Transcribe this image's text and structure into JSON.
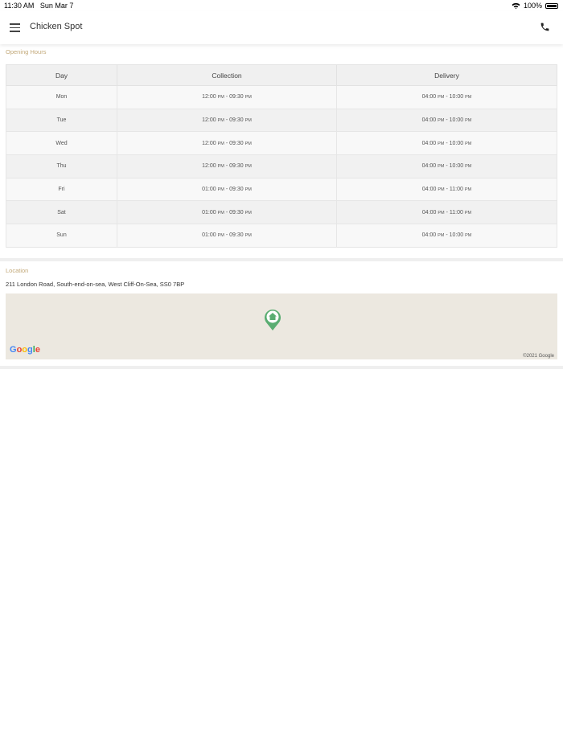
{
  "status_bar": {
    "time": "11:30 AM",
    "date": "Sun Mar 7",
    "battery": "100%"
  },
  "header": {
    "title": "Chicken Spot"
  },
  "opening_hours": {
    "label": "Opening Hours",
    "columns": [
      "Day",
      "Collection",
      "Delivery"
    ],
    "rows": [
      {
        "day": "Mon",
        "collection": {
          "from": "12:00",
          "from_p": "PM",
          "to": "09:30",
          "to_p": "PM"
        },
        "delivery": {
          "from": "04:00",
          "from_p": "PM",
          "to": "10:00",
          "to_p": "PM"
        }
      },
      {
        "day": "Tue",
        "collection": {
          "from": "12:00",
          "from_p": "PM",
          "to": "09:30",
          "to_p": "PM"
        },
        "delivery": {
          "from": "04:00",
          "from_p": "PM",
          "to": "10:00",
          "to_p": "PM"
        }
      },
      {
        "day": "Wed",
        "collection": {
          "from": "12:00",
          "from_p": "PM",
          "to": "09:30",
          "to_p": "PM"
        },
        "delivery": {
          "from": "04:00",
          "from_p": "PM",
          "to": "10:00",
          "to_p": "PM"
        }
      },
      {
        "day": "Thu",
        "collection": {
          "from": "12:00",
          "from_p": "PM",
          "to": "09:30",
          "to_p": "PM"
        },
        "delivery": {
          "from": "04:00",
          "from_p": "PM",
          "to": "10:00",
          "to_p": "PM"
        }
      },
      {
        "day": "Fri",
        "collection": {
          "from": "01:00",
          "from_p": "PM",
          "to": "09:30",
          "to_p": "PM"
        },
        "delivery": {
          "from": "04:00",
          "from_p": "PM",
          "to": "11:00",
          "to_p": "PM"
        }
      },
      {
        "day": "Sat",
        "collection": {
          "from": "01:00",
          "from_p": "PM",
          "to": "09:30",
          "to_p": "PM"
        },
        "delivery": {
          "from": "04:00",
          "from_p": "PM",
          "to": "11:00",
          "to_p": "PM"
        }
      },
      {
        "day": "Sun",
        "collection": {
          "from": "01:00",
          "from_p": "PM",
          "to": "09:30",
          "to_p": "PM"
        },
        "delivery": {
          "from": "04:00",
          "from_p": "PM",
          "to": "10:00",
          "to_p": "PM"
        }
      }
    ]
  },
  "location": {
    "label": "Location",
    "address": "211 London Road, South-end-on-sea, West Cliff-On-Sea, SS0 7BP",
    "map_logo": "Google",
    "map_copyright": "©2021 Google",
    "pin_color": "#5aad72",
    "map_bg": "#ece8e0"
  },
  "colors": {
    "accent": "#c2a878"
  }
}
